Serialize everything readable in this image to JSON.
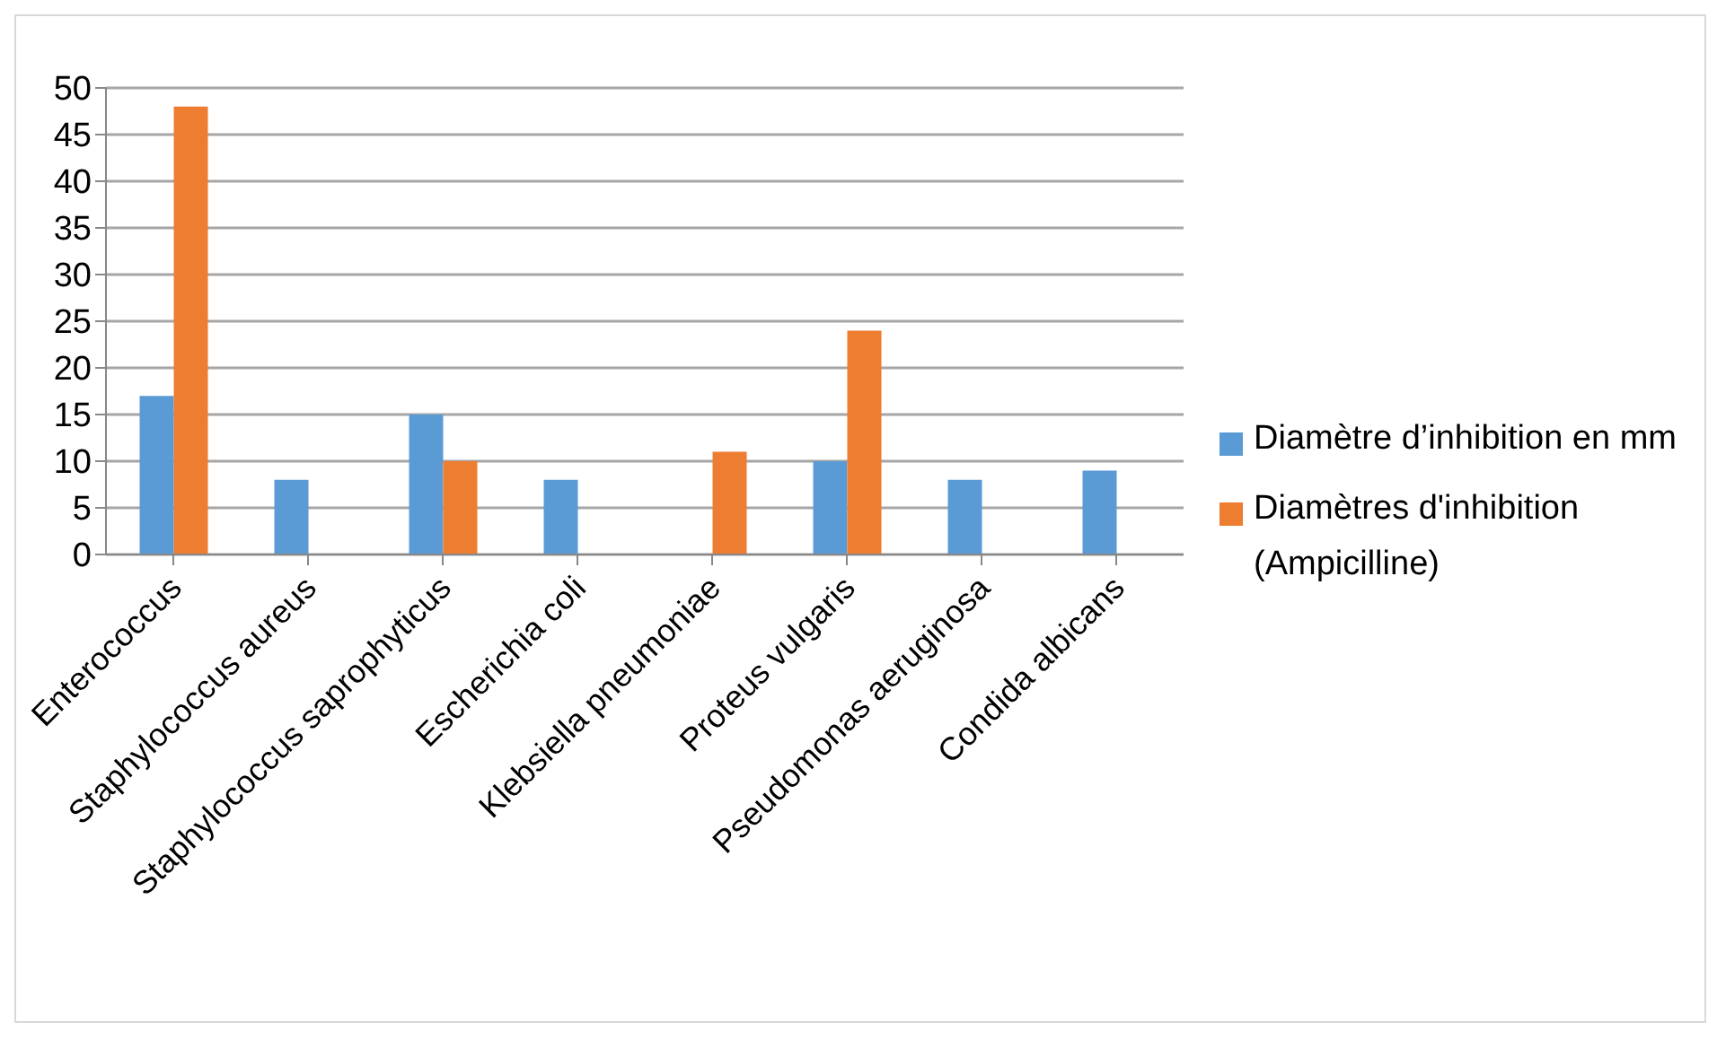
{
  "chart_data": {
    "type": "bar",
    "categories": [
      "Enterococcus",
      "Staphylococcus aureus",
      "Staphylococcus saprophyticus",
      "Escherichia coli",
      "Klebsiella pneumoniae",
      "Proteus vulgaris",
      "Pseudomonas aeruginosa",
      "Condida albicans"
    ],
    "series": [
      {
        "name": "Diamètre d’inhibition en mm",
        "color": "#5b9bd5",
        "values": [
          17,
          8,
          15,
          8,
          0,
          10,
          8,
          9
        ]
      },
      {
        "name": "Diamètres d'inhibition (Ampicilline)",
        "color": "#ed7d31",
        "values": [
          48,
          0,
          10,
          0,
          11,
          24,
          0,
          0
        ]
      }
    ],
    "ylim": [
      0,
      50
    ],
    "yticks": [
      0,
      5,
      10,
      15,
      20,
      25,
      30,
      35,
      40,
      45,
      50
    ],
    "grid": "y",
    "legend": "right"
  }
}
